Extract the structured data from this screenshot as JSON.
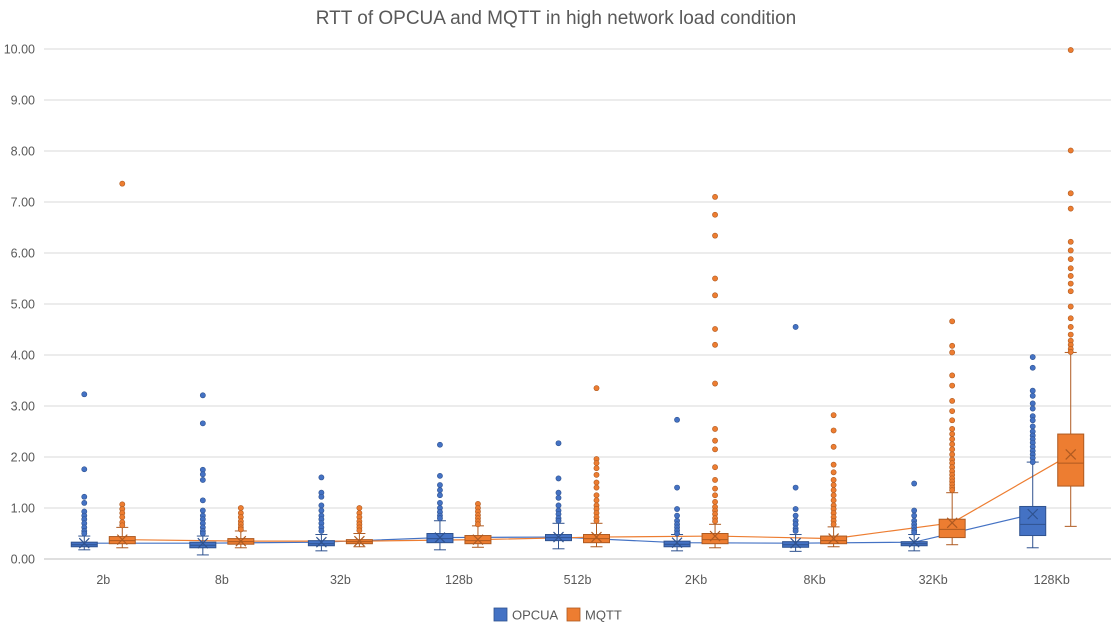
{
  "chart_data": {
    "type": "box",
    "title": "RTT of OPCUA and MQTT in high network load condition",
    "xlabel": "",
    "ylabel": "",
    "ylim": [
      0,
      10
    ],
    "y_ticks": [
      "0.00",
      "1.00",
      "2.00",
      "3.00",
      "4.00",
      "5.00",
      "6.00",
      "7.00",
      "8.00",
      "9.00",
      "10.00"
    ],
    "categories": [
      "2b",
      "8b",
      "32b",
      "128b",
      "512b",
      "2Kb",
      "8Kb",
      "32Kb",
      "128Kb"
    ],
    "grid": true,
    "legend": "bottom",
    "mean_lines": true,
    "series": [
      {
        "name": "OPCUA",
        "color": "#4472C4",
        "edge": "#2F528F",
        "boxes": [
          {
            "min": 0.18,
            "q1": 0.24,
            "median": 0.28,
            "q3": 0.33,
            "max": 0.45,
            "mean": 0.31,
            "outliers": [
              3.23,
              1.76,
              1.22,
              1.1,
              0.93,
              0.85,
              0.78,
              0.7,
              0.62,
              0.55,
              0.5
            ]
          },
          {
            "min": 0.08,
            "q1": 0.22,
            "median": 0.27,
            "q3": 0.33,
            "max": 0.45,
            "mean": 0.31,
            "outliers": [
              3.21,
              2.66,
              1.75,
              1.66,
              1.55,
              1.15,
              0.95,
              0.85,
              0.78,
              0.7,
              0.62,
              0.55,
              0.5
            ]
          },
          {
            "min": 0.16,
            "q1": 0.26,
            "median": 0.3,
            "q3": 0.36,
            "max": 0.48,
            "mean": 0.33,
            "outliers": [
              1.6,
              1.3,
              1.22,
              1.05,
              0.95,
              0.85,
              0.78,
              0.7,
              0.62,
              0.55
            ]
          },
          {
            "min": 0.18,
            "q1": 0.32,
            "median": 0.4,
            "q3": 0.5,
            "max": 0.75,
            "mean": 0.42,
            "outliers": [
              2.24,
              1.63,
              1.45,
              1.35,
              1.25,
              1.1,
              1.0,
              0.92,
              0.85,
              0.8
            ]
          },
          {
            "min": 0.2,
            "q1": 0.36,
            "median": 0.42,
            "q3": 0.48,
            "max": 0.7,
            "mean": 0.43,
            "outliers": [
              2.27,
              1.58,
              1.3,
              1.2,
              1.05,
              0.95,
              0.88,
              0.8,
              0.75
            ]
          },
          {
            "min": 0.16,
            "q1": 0.24,
            "median": 0.29,
            "q3": 0.35,
            "max": 0.48,
            "mean": 0.32,
            "outliers": [
              2.73,
              1.4,
              0.98,
              0.85,
              0.75,
              0.68,
              0.62,
              0.56,
              0.5
            ]
          },
          {
            "min": 0.15,
            "q1": 0.23,
            "median": 0.28,
            "q3": 0.34,
            "max": 0.48,
            "mean": 0.31,
            "outliers": [
              4.55,
              1.4,
              0.98,
              0.85,
              0.75,
              0.68,
              0.6,
              0.55
            ]
          },
          {
            "min": 0.16,
            "q1": 0.26,
            "median": 0.3,
            "q3": 0.34,
            "max": 0.48,
            "mean": 0.33,
            "outliers": [
              1.48,
              0.95,
              0.85,
              0.75,
              0.68,
              0.62,
              0.56,
              0.52
            ]
          },
          {
            "min": 0.22,
            "q1": 0.46,
            "median": 0.68,
            "q3": 1.03,
            "max": 1.9,
            "mean": 0.88,
            "outliers": [
              3.96,
              3.75,
              3.3,
              3.2,
              3.05,
              2.95,
              2.8,
              2.72,
              2.6,
              2.5,
              2.42,
              2.35,
              2.28,
              2.2,
              2.12,
              2.05,
              1.98,
              1.9
            ]
          }
        ]
      },
      {
        "name": "MQTT",
        "color": "#ED7D31",
        "edge": "#AE5A21",
        "boxes": [
          {
            "min": 0.22,
            "q1": 0.3,
            "median": 0.36,
            "q3": 0.44,
            "max": 0.62,
            "mean": 0.38,
            "outliers": [
              7.36,
              1.07,
              0.98,
              0.9,
              0.82,
              0.72,
              0.66
            ]
          },
          {
            "min": 0.22,
            "q1": 0.29,
            "median": 0.34,
            "q3": 0.4,
            "max": 0.55,
            "mean": 0.35,
            "outliers": [
              1.0,
              0.9,
              0.82,
              0.74,
              0.68,
              0.62,
              0.58
            ]
          },
          {
            "min": 0.24,
            "q1": 0.3,
            "median": 0.34,
            "q3": 0.38,
            "max": 0.5,
            "mean": 0.35,
            "outliers": [
              1.0,
              0.9,
              0.82,
              0.74,
              0.68,
              0.62,
              0.56
            ]
          },
          {
            "min": 0.23,
            "q1": 0.3,
            "median": 0.36,
            "q3": 0.46,
            "max": 0.65,
            "mean": 0.38,
            "outliers": [
              1.08,
              1.0,
              0.93,
              0.86,
              0.8,
              0.74,
              0.68
            ]
          },
          {
            "min": 0.24,
            "q1": 0.32,
            "median": 0.4,
            "q3": 0.48,
            "max": 0.7,
            "mean": 0.43,
            "outliers": [
              3.35,
              1.96,
              1.88,
              1.78,
              1.65,
              1.5,
              1.4,
              1.25,
              1.15,
              1.05,
              0.98,
              0.9,
              0.82,
              0.75
            ]
          },
          {
            "min": 0.22,
            "q1": 0.3,
            "median": 0.38,
            "q3": 0.5,
            "max": 0.68,
            "mean": 0.45,
            "outliers": [
              7.1,
              6.75,
              6.34,
              5.5,
              5.17,
              4.51,
              4.2,
              3.44,
              2.55,
              2.32,
              2.15,
              1.8,
              1.55,
              1.38,
              1.25,
              1.12,
              1.02,
              0.95,
              0.88,
              0.8,
              0.74
            ]
          },
          {
            "min": 0.24,
            "q1": 0.3,
            "median": 0.36,
            "q3": 0.45,
            "max": 0.63,
            "mean": 0.4,
            "outliers": [
              2.82,
              2.52,
              2.2,
              1.85,
              1.7,
              1.55,
              1.45,
              1.35,
              1.25,
              1.15,
              1.05,
              0.98,
              0.9,
              0.82,
              0.75,
              0.68
            ]
          },
          {
            "min": 0.28,
            "q1": 0.42,
            "median": 0.58,
            "q3": 0.78,
            "max": 1.3,
            "mean": 0.71,
            "outliers": [
              4.66,
              4.18,
              4.05,
              3.6,
              3.4,
              3.1,
              2.9,
              2.72,
              2.55,
              2.45,
              2.35,
              2.25,
              2.15,
              2.05,
              1.95,
              1.88,
              1.8,
              1.72,
              1.65,
              1.58,
              1.52,
              1.46,
              1.4,
              1.35
            ]
          },
          {
            "min": 0.64,
            "q1": 1.43,
            "median": 1.88,
            "q3": 2.45,
            "max": 4.05,
            "mean": 2.05,
            "outliers": [
              9.98,
              8.01,
              7.17,
              6.87,
              6.22,
              6.05,
              5.88,
              5.7,
              5.55,
              5.4,
              5.25,
              4.95,
              4.72,
              4.55,
              4.4,
              4.28,
              4.2,
              4.12,
              4.06
            ]
          }
        ]
      }
    ]
  }
}
